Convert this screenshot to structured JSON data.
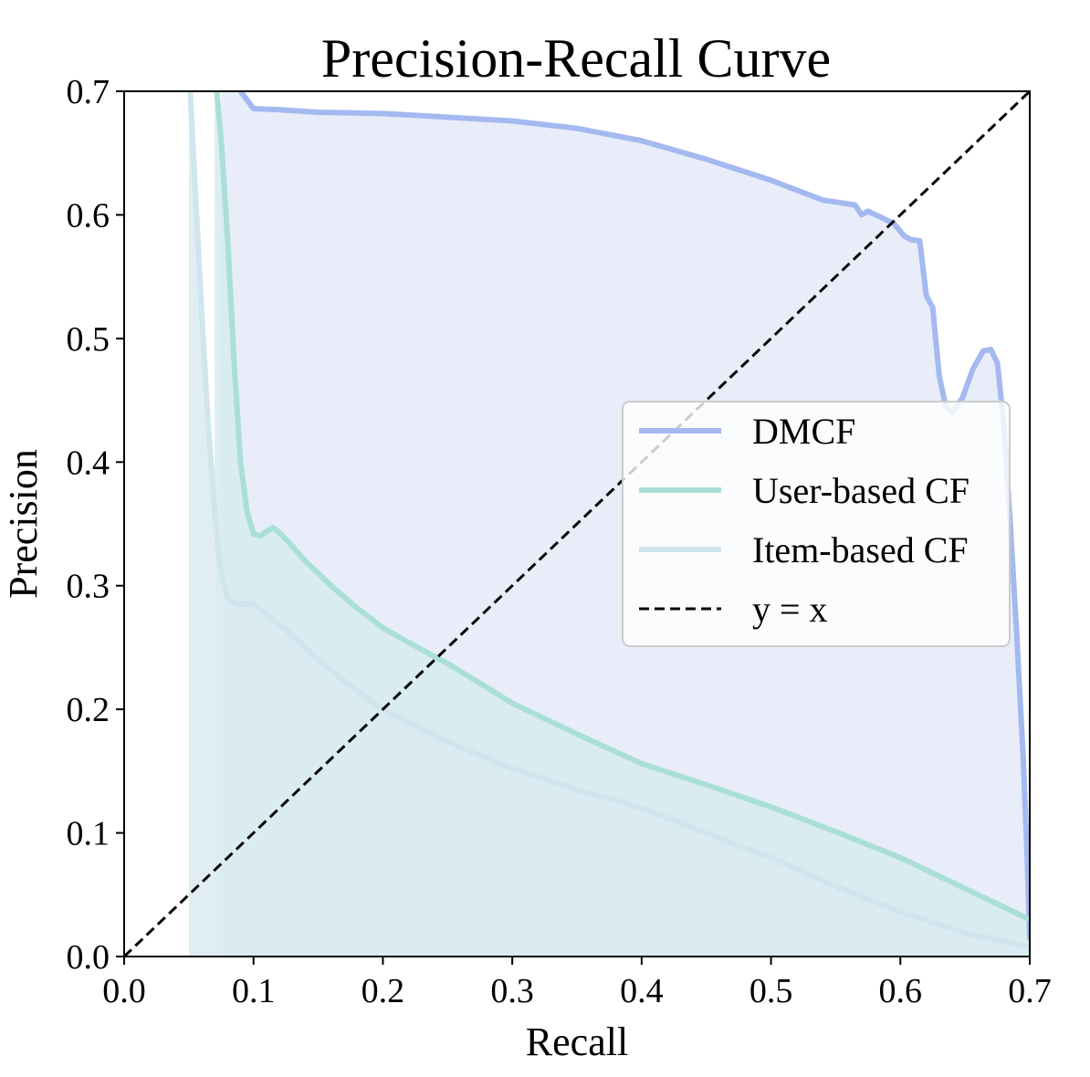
{
  "chart_data": {
    "type": "line",
    "title": "Precision-Recall Curve",
    "xlabel": "Recall",
    "ylabel": "Precision",
    "xlim": [
      0.0,
      0.7
    ],
    "ylim": [
      0.0,
      0.7
    ],
    "xticks": [
      "0.0",
      "0.1",
      "0.2",
      "0.3",
      "0.4",
      "0.5",
      "0.6",
      "0.7"
    ],
    "yticks": [
      "0.0",
      "0.1",
      "0.2",
      "0.3",
      "0.4",
      "0.5",
      "0.6",
      "0.7"
    ],
    "grid": false,
    "legend_position": "right",
    "series": [
      {
        "name": "DMCF",
        "color": "#a4b9f0",
        "fill": "#e8edf9",
        "x": [
          0.075,
          0.09,
          0.1,
          0.12,
          0.15,
          0.2,
          0.25,
          0.3,
          0.35,
          0.4,
          0.45,
          0.5,
          0.54,
          0.565,
          0.57,
          0.575,
          0.585,
          0.595,
          0.603,
          0.608,
          0.615,
          0.62,
          0.625,
          0.63,
          0.635,
          0.64,
          0.648,
          0.656,
          0.664,
          0.67,
          0.675,
          0.68,
          0.685,
          0.69,
          0.695,
          0.698,
          0.7
        ],
        "y": [
          0.72,
          0.7,
          0.686,
          0.685,
          0.683,
          0.682,
          0.679,
          0.676,
          0.67,
          0.66,
          0.645,
          0.628,
          0.612,
          0.608,
          0.6,
          0.603,
          0.598,
          0.593,
          0.583,
          0.58,
          0.579,
          0.535,
          0.525,
          0.47,
          0.445,
          0.44,
          0.452,
          0.475,
          0.49,
          0.491,
          0.48,
          0.43,
          0.35,
          0.26,
          0.16,
          0.08,
          0.015
        ]
      },
      {
        "name": "User-based CF",
        "color": "#aadfd8",
        "fill": "#d6ebee",
        "x": [
          0.07,
          0.075,
          0.08,
          0.085,
          0.09,
          0.095,
          0.1,
          0.105,
          0.11,
          0.115,
          0.12,
          0.13,
          0.14,
          0.16,
          0.18,
          0.2,
          0.22,
          0.25,
          0.28,
          0.3,
          0.35,
          0.4,
          0.45,
          0.5,
          0.55,
          0.6,
          0.65,
          0.7
        ],
        "y": [
          0.72,
          0.66,
          0.58,
          0.48,
          0.4,
          0.36,
          0.342,
          0.34,
          0.344,
          0.347,
          0.343,
          0.332,
          0.32,
          0.3,
          0.282,
          0.266,
          0.254,
          0.237,
          0.218,
          0.205,
          0.18,
          0.156,
          0.139,
          0.121,
          0.101,
          0.08,
          0.055,
          0.03
        ]
      },
      {
        "name": "Item-based CF",
        "color": "#d0e5ee",
        "fill": "#dbebf2",
        "x": [
          0.05,
          0.055,
          0.06,
          0.065,
          0.07,
          0.075,
          0.08,
          0.085,
          0.09,
          0.1,
          0.11,
          0.13,
          0.15,
          0.18,
          0.2,
          0.25,
          0.3,
          0.35,
          0.4,
          0.45,
          0.5,
          0.55,
          0.6,
          0.65,
          0.7
        ],
        "y": [
          0.72,
          0.62,
          0.52,
          0.43,
          0.36,
          0.31,
          0.29,
          0.286,
          0.285,
          0.285,
          0.277,
          0.26,
          0.24,
          0.215,
          0.2,
          0.174,
          0.152,
          0.135,
          0.12,
          0.1,
          0.08,
          0.057,
          0.036,
          0.019,
          0.008
        ]
      },
      {
        "name": "y = x",
        "color": "#000000",
        "dash": true,
        "x": [
          0.0,
          0.7
        ],
        "y": [
          0.0,
          0.7
        ]
      }
    ]
  }
}
